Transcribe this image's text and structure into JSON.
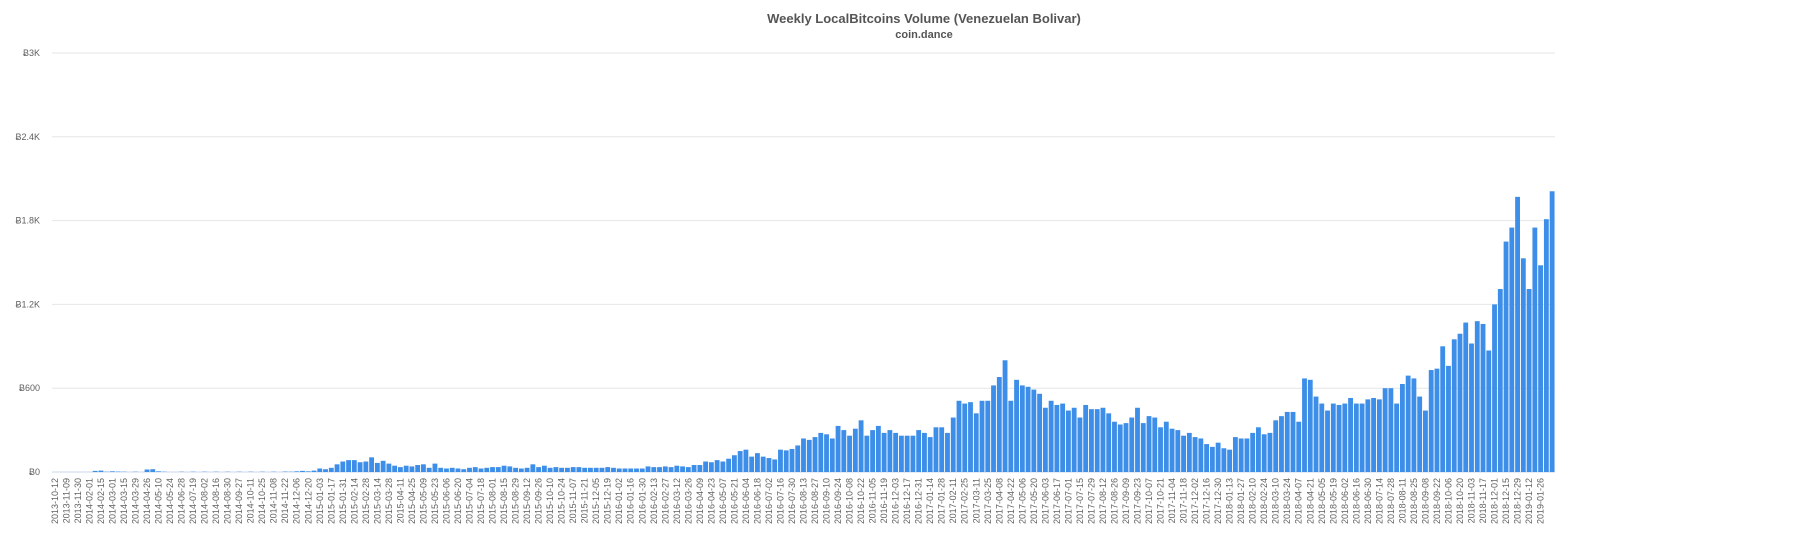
{
  "chart_data": {
    "type": "bar",
    "title": "Weekly LocalBitcoins Volume (Venezuelan Bolivar)",
    "subtitle": "coin.dance",
    "color": "#3d8ee8",
    "grid": true,
    "ylim": [
      0,
      3000
    ],
    "yticks": [
      {
        "value": 0,
        "label": "Ƀ0"
      },
      {
        "value": 600,
        "label": "Ƀ600"
      },
      {
        "value": 1200,
        "label": "Ƀ1.2K"
      },
      {
        "value": 1800,
        "label": "Ƀ1.8K"
      },
      {
        "value": 2400,
        "label": "Ƀ2.4K"
      },
      {
        "value": 3000,
        "label": "Ƀ3K"
      }
    ],
    "categories": [
      "2013-10-12",
      null,
      "2013-11-09",
      null,
      "2013-11-30",
      null,
      "2014-02-01",
      null,
      "2014-02-15",
      null,
      "2014-03-01",
      null,
      "2014-03-15",
      null,
      "2014-03-29",
      null,
      "2014-04-26",
      null,
      "2014-05-10",
      null,
      "2014-05-24",
      null,
      "2014-06-28",
      null,
      "2014-07-19",
      null,
      "2014-08-02",
      null,
      "2014-08-16",
      null,
      "2014-08-30",
      null,
      "2014-09-27",
      null,
      "2014-10-11",
      null,
      "2014-10-25",
      null,
      "2014-11-08",
      null,
      "2014-11-22",
      null,
      "2014-12-06",
      null,
      "2014-12-20",
      null,
      "2015-01-03",
      null,
      "2015-01-17",
      null,
      "2015-01-31",
      null,
      "2015-02-14",
      null,
      "2015-02-28",
      null,
      "2015-03-14",
      null,
      "2015-03-28",
      null,
      "2015-04-11",
      null,
      "2015-04-25",
      null,
      "2015-05-09",
      null,
      "2015-05-23",
      null,
      "2015-06-06",
      null,
      "2015-06-20",
      null,
      "2015-07-04",
      null,
      "2015-07-18",
      null,
      "2015-08-01",
      null,
      "2015-08-15",
      null,
      "2015-08-29",
      null,
      "2015-09-12",
      null,
      "2015-09-26",
      null,
      "2015-10-10",
      null,
      "2015-10-24",
      null,
      "2015-11-07",
      null,
      "2015-11-21",
      null,
      "2015-12-05",
      null,
      "2015-12-19",
      null,
      "2016-01-02",
      null,
      "2016-01-16",
      null,
      "2016-01-30",
      null,
      "2016-02-13",
      null,
      "2016-02-27",
      null,
      "2016-03-12",
      null,
      "2016-03-26",
      null,
      "2016-04-09",
      null,
      "2016-04-23",
      null,
      "2016-05-07",
      null,
      "2016-05-21",
      null,
      "2016-06-04",
      null,
      "2016-06-18",
      null,
      "2016-07-02",
      null,
      "2016-07-16",
      null,
      "2016-07-30",
      null,
      "2016-08-13",
      null,
      "2016-08-27",
      null,
      "2016-09-10",
      null,
      "2016-09-24",
      null,
      "2016-10-08",
      null,
      "2016-10-22",
      null,
      "2016-11-05",
      null,
      "2016-11-19",
      null,
      "2016-12-03",
      null,
      "2016-12-17",
      null,
      "2016-12-31",
      null,
      "2017-01-14",
      null,
      "2017-01-28",
      null,
      "2017-02-11",
      null,
      "2017-02-25",
      null,
      "2017-03-11",
      null,
      "2017-03-25",
      null,
      "2017-04-08",
      null,
      "2017-04-22",
      null,
      "2017-05-06",
      null,
      "2017-05-20",
      null,
      "2017-06-03",
      null,
      "2017-06-17",
      null,
      "2017-07-01",
      null,
      "2017-07-15",
      null,
      "2017-07-29",
      null,
      "2017-08-12",
      null,
      "2017-08-26",
      null,
      "2017-09-09",
      null,
      "2017-09-23",
      null,
      "2017-10-07",
      null,
      "2017-10-21",
      null,
      "2017-11-04",
      null,
      "2017-11-18",
      null,
      "2017-12-02",
      null,
      "2017-12-16",
      null,
      "2017-12-30",
      null,
      "2018-01-13",
      null,
      "2018-01-27",
      null,
      "2018-02-10",
      null,
      "2018-02-24",
      null,
      "2018-03-10",
      null,
      "2018-03-24",
      null,
      "2018-04-07",
      null,
      "2018-04-21",
      null,
      "2018-05-05",
      null,
      "2018-05-19",
      null,
      "2018-06-02",
      null,
      "2018-06-16",
      null,
      "2018-06-30",
      null,
      "2018-07-14",
      null,
      "2018-07-28",
      null,
      "2018-08-11",
      null,
      "2018-08-25",
      null,
      "2018-09-08",
      null,
      "2018-09-22",
      null,
      "2018-10-06",
      null,
      "2018-10-20",
      null,
      "2018-11-03",
      null,
      "2018-11-17",
      null,
      "2018-12-01",
      null,
      "2018-12-15",
      null,
      "2018-12-29",
      null,
      "2019-01-12",
      null,
      "2019-01-26",
      null,
      null
    ],
    "values": [
      0,
      0,
      0,
      0,
      0,
      0,
      0,
      8,
      10,
      2,
      5,
      3,
      2,
      0,
      2,
      0,
      18,
      20,
      5,
      2,
      0,
      0,
      2,
      0,
      2,
      0,
      2,
      0,
      2,
      0,
      2,
      0,
      2,
      0,
      2,
      0,
      2,
      0,
      2,
      0,
      3,
      2,
      5,
      8,
      5,
      10,
      25,
      20,
      30,
      55,
      75,
      85,
      85,
      70,
      75,
      105,
      65,
      80,
      60,
      45,
      35,
      45,
      40,
      50,
      55,
      30,
      60,
      30,
      25,
      30,
      25,
      20,
      30,
      35,
      25,
      30,
      35,
      35,
      45,
      40,
      30,
      25,
      30,
      55,
      35,
      45,
      30,
      35,
      30,
      30,
      35,
      35,
      30,
      30,
      30,
      30,
      35,
      30,
      25,
      25,
      25,
      25,
      25,
      40,
      35,
      35,
      40,
      35,
      45,
      40,
      35,
      50,
      50,
      75,
      70,
      85,
      75,
      95,
      120,
      150,
      160,
      110,
      135,
      110,
      100,
      90,
      160,
      155,
      165,
      190,
      240,
      230,
      250,
      280,
      270,
      240,
      330,
      300,
      260,
      310,
      370,
      260,
      300,
      330,
      280,
      300,
      280,
      260,
      260,
      260,
      300,
      280,
      250,
      320,
      320,
      280,
      390,
      510,
      490,
      500,
      420,
      510,
      510,
      620,
      680,
      800,
      510,
      660,
      620,
      610,
      590,
      560,
      460,
      510,
      480,
      490,
      440,
      460,
      390,
      480,
      450,
      450,
      460,
      420,
      360,
      340,
      350,
      390,
      460,
      350,
      400,
      390,
      320,
      360,
      310,
      300,
      260,
      280,
      250,
      240,
      200,
      180,
      210,
      170,
      160,
      250,
      240,
      240,
      280,
      320,
      270,
      280,
      370,
      400,
      430,
      430,
      360,
      670,
      660,
      540,
      490,
      440,
      490,
      480,
      490,
      530,
      490,
      490,
      520,
      530,
      520,
      600,
      600,
      490,
      630,
      690,
      670,
      540,
      440,
      730,
      740,
      900,
      760,
      950,
      990,
      1070,
      920,
      1080,
      1060,
      870,
      1200,
      1310,
      1650,
      1750,
      1970,
      1530,
      1310,
      1750,
      1480,
      1810,
      2010
    ]
  }
}
